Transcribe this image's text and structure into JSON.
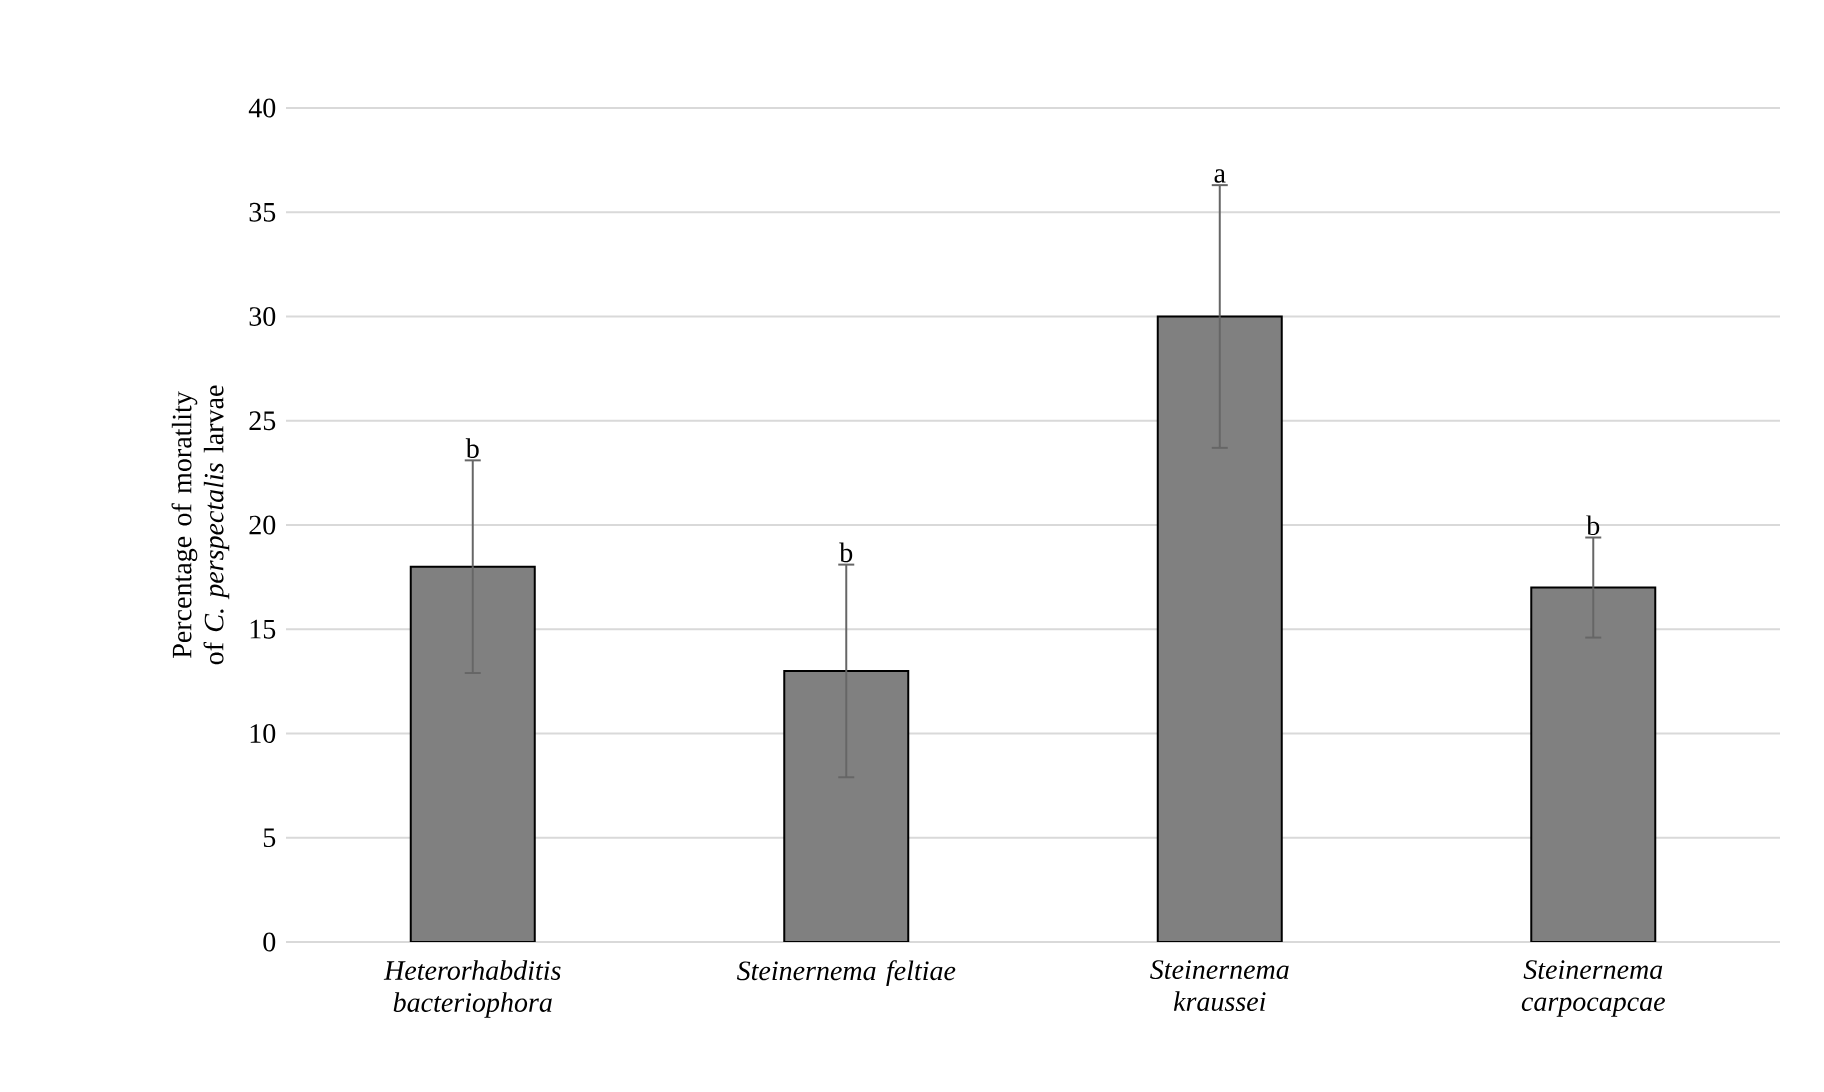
{
  "chart_data": {
    "type": "bar",
    "ylabel": "Percentage of moratlity of *C. perspectalis* larvae",
    "categories": [
      "Heterorhabditis bacteriophora",
      "Steinernema feltiae",
      "Steinernema kraussei",
      "Steinernema carpocapcae"
    ],
    "values": [
      18,
      13,
      30,
      17
    ],
    "errors": [
      5.1,
      5.1,
      6.3,
      2.4
    ],
    "color": "#808080",
    "ylim": [
      0,
      40
    ],
    "yticks": [
      0,
      5,
      10,
      15,
      20,
      25,
      30,
      35,
      40
    ],
    "grid": "y",
    "annotations": [
      {
        "text": "b",
        "x": "Heterorhabditis bacteriophora",
        "y": 23.1
      },
      {
        "text": "b",
        "x": "Steinernema feltiae",
        "y": 18.1
      },
      {
        "text": "a",
        "x": "Steinernema kraussei",
        "y": 36.3
      },
      {
        "text": "b",
        "x": "Steinernema carpocapcae",
        "y": 19.4
      }
    ]
  }
}
